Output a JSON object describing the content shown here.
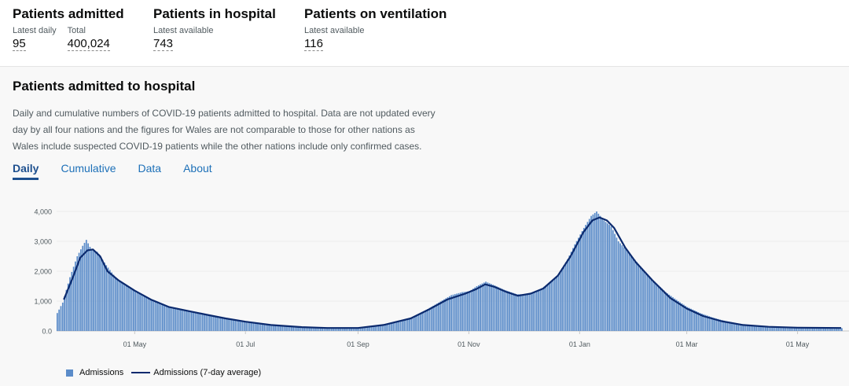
{
  "header": {
    "stats": [
      {
        "title": "Patients admitted",
        "cells": [
          {
            "label": "Latest daily",
            "value": "95"
          },
          {
            "label": "Total",
            "value": "400,024"
          }
        ]
      },
      {
        "title": "Patients in hospital",
        "cells": [
          {
            "label": "Latest available",
            "value": "743"
          }
        ]
      },
      {
        "title": "Patients on ventilation",
        "cells": [
          {
            "label": "Latest available",
            "value": "116"
          }
        ]
      }
    ]
  },
  "card": {
    "title": "Patients admitted to hospital",
    "description": "Daily and cumulative numbers of COVID-19 patients admitted to hospital. Data are not updated every day by all four nations and the figures for Wales are not comparable to those for other nations as Wales include suspected COVID-19 patients while the other nations include only confirmed cases.",
    "tabs": [
      {
        "label": "Daily",
        "active": true
      },
      {
        "label": "Cumulative",
        "active": false
      },
      {
        "label": "Data",
        "active": false
      },
      {
        "label": "About",
        "active": false
      }
    ]
  },
  "colors": {
    "bars": "#5b8cc9",
    "line": "#0b2a6e",
    "tab_link": "#1d70b8",
    "tab_active": "#1d4f8e"
  },
  "chart_data": {
    "type": "bar",
    "x_type": "date",
    "x_start": "2020-03-19",
    "x_end": "2021-05-25",
    "ylim": [
      0,
      4000
    ],
    "y_ticks": [
      {
        "value": 0,
        "label": "0.0"
      },
      {
        "value": 1000,
        "label": "1,000"
      },
      {
        "value": 2000,
        "label": "2,000"
      },
      {
        "value": 3000,
        "label": "3,000"
      },
      {
        "value": 4000,
        "label": "4,000"
      }
    ],
    "x_ticks": [
      {
        "date": "2020-05-01",
        "label": "01 May"
      },
      {
        "date": "2020-07-01",
        "label": "01 Jul"
      },
      {
        "date": "2020-09-01",
        "label": "01 Sep"
      },
      {
        "date": "2020-11-01",
        "label": "01 Nov"
      },
      {
        "date": "2021-01-01",
        "label": "01 Jan"
      },
      {
        "date": "2021-03-01",
        "label": "01 Mar"
      },
      {
        "date": "2021-05-01",
        "label": "01 May"
      }
    ],
    "grid": "horizontal",
    "legend_position": "bottom-left",
    "series": [
      {
        "name": "Admissions",
        "kind": "bar",
        "points": [
          [
            "2020-03-19",
            600
          ],
          [
            "2020-03-22",
            950
          ],
          [
            "2020-03-26",
            1800
          ],
          [
            "2020-03-30",
            2500
          ],
          [
            "2020-04-02",
            2850
          ],
          [
            "2020-04-04",
            3050
          ],
          [
            "2020-04-07",
            2700
          ],
          [
            "2020-04-10",
            2650
          ],
          [
            "2020-04-15",
            2200
          ],
          [
            "2020-04-20",
            1800
          ],
          [
            "2020-04-25",
            1550
          ],
          [
            "2020-05-01",
            1350
          ],
          [
            "2020-05-05",
            1200
          ],
          [
            "2020-05-10",
            1050
          ],
          [
            "2020-05-15",
            900
          ],
          [
            "2020-05-20",
            800
          ],
          [
            "2020-05-25",
            720
          ],
          [
            "2020-06-01",
            650
          ],
          [
            "2020-06-10",
            540
          ],
          [
            "2020-06-20",
            420
          ],
          [
            "2020-07-01",
            300
          ],
          [
            "2020-07-10",
            230
          ],
          [
            "2020-07-20",
            170
          ],
          [
            "2020-08-01",
            120
          ],
          [
            "2020-08-15",
            95
          ],
          [
            "2020-09-01",
            110
          ],
          [
            "2020-09-10",
            180
          ],
          [
            "2020-09-20",
            280
          ],
          [
            "2020-09-30",
            450
          ],
          [
            "2020-10-08",
            700
          ],
          [
            "2020-10-15",
            950
          ],
          [
            "2020-10-22",
            1200
          ],
          [
            "2020-10-28",
            1300
          ],
          [
            "2020-11-01",
            1330
          ],
          [
            "2020-11-05",
            1500
          ],
          [
            "2020-11-10",
            1650
          ],
          [
            "2020-11-15",
            1520
          ],
          [
            "2020-11-20",
            1380
          ],
          [
            "2020-11-27",
            1230
          ],
          [
            "2020-12-03",
            1230
          ],
          [
            "2020-12-10",
            1400
          ],
          [
            "2020-12-15",
            1600
          ],
          [
            "2020-12-20",
            1900
          ],
          [
            "2020-12-25",
            2400
          ],
          [
            "2020-12-29",
            2900
          ],
          [
            "2021-01-03",
            3450
          ],
          [
            "2021-01-07",
            3850
          ],
          [
            "2021-01-10",
            4000
          ],
          [
            "2021-01-14",
            3700
          ],
          [
            "2021-01-18",
            3500
          ],
          [
            "2021-01-22",
            3000
          ],
          [
            "2021-01-28",
            2600
          ],
          [
            "2021-02-04",
            2100
          ],
          [
            "2021-02-10",
            1700
          ],
          [
            "2021-02-17",
            1300
          ],
          [
            "2021-02-24",
            1000
          ],
          [
            "2021-03-01",
            800
          ],
          [
            "2021-03-08",
            600
          ],
          [
            "2021-03-15",
            450
          ],
          [
            "2021-03-22",
            330
          ],
          [
            "2021-03-29",
            250
          ],
          [
            "2021-04-05",
            190
          ],
          [
            "2021-04-15",
            150
          ],
          [
            "2021-04-25",
            120
          ],
          [
            "2021-05-05",
            100
          ],
          [
            "2021-05-15",
            95
          ],
          [
            "2021-05-25",
            95
          ]
        ]
      },
      {
        "name": "Admissions (7-day average)",
        "kind": "line",
        "points": [
          [
            "2020-03-23",
            1050
          ],
          [
            "2020-03-28",
            1800
          ],
          [
            "2020-04-01",
            2450
          ],
          [
            "2020-04-05",
            2700
          ],
          [
            "2020-04-08",
            2730
          ],
          [
            "2020-04-12",
            2500
          ],
          [
            "2020-04-16",
            2000
          ],
          [
            "2020-04-22",
            1700
          ],
          [
            "2020-05-01",
            1350
          ],
          [
            "2020-05-10",
            1050
          ],
          [
            "2020-05-20",
            800
          ],
          [
            "2020-06-01",
            650
          ],
          [
            "2020-06-10",
            540
          ],
          [
            "2020-06-20",
            420
          ],
          [
            "2020-07-01",
            310
          ],
          [
            "2020-07-15",
            200
          ],
          [
            "2020-08-01",
            130
          ],
          [
            "2020-08-15",
            100
          ],
          [
            "2020-09-01",
            100
          ],
          [
            "2020-09-15",
            200
          ],
          [
            "2020-09-30",
            420
          ],
          [
            "2020-10-10",
            720
          ],
          [
            "2020-10-20",
            1050
          ],
          [
            "2020-10-30",
            1250
          ],
          [
            "2020-11-05",
            1400
          ],
          [
            "2020-11-10",
            1560
          ],
          [
            "2020-11-15",
            1480
          ],
          [
            "2020-11-22",
            1300
          ],
          [
            "2020-11-28",
            1180
          ],
          [
            "2020-12-05",
            1250
          ],
          [
            "2020-12-12",
            1420
          ],
          [
            "2020-12-20",
            1850
          ],
          [
            "2020-12-27",
            2500
          ],
          [
            "2021-01-03",
            3300
          ],
          [
            "2021-01-08",
            3700
          ],
          [
            "2021-01-12",
            3800
          ],
          [
            "2021-01-16",
            3700
          ],
          [
            "2021-01-20",
            3450
          ],
          [
            "2021-01-26",
            2800
          ],
          [
            "2021-02-01",
            2300
          ],
          [
            "2021-02-10",
            1700
          ],
          [
            "2021-02-20",
            1100
          ],
          [
            "2021-03-01",
            750
          ],
          [
            "2021-03-10",
            500
          ],
          [
            "2021-03-20",
            330
          ],
          [
            "2021-04-01",
            200
          ],
          [
            "2021-04-15",
            140
          ],
          [
            "2021-05-01",
            110
          ],
          [
            "2021-05-25",
            100
          ]
        ]
      }
    ]
  }
}
